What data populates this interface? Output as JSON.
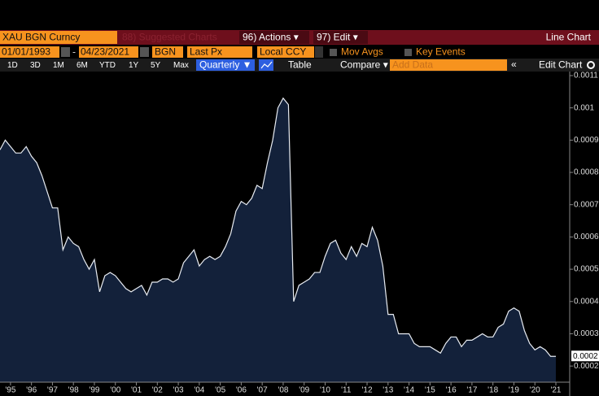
{
  "ui": {
    "security": "XAU BGN Curncy",
    "suggested": "88) Suggested Charts",
    "actions": "96) Actions ▾",
    "edit": "97) Edit ▾",
    "chart_kind": "Line Chart",
    "start_date": "01/01/1993",
    "dash": "-",
    "end_date": "04/23/2021",
    "source": "BGN",
    "field": "Last Px",
    "currency": "Local CCY",
    "mov_avgs": "Mov Avgs",
    "key_events": "Key Events",
    "ranges": [
      "1D",
      "3D",
      "1M",
      "6M",
      "YTD",
      "1Y",
      "5Y",
      "Max"
    ],
    "period": "Quarterly ▼",
    "table": "Table",
    "compare": "Compare ▾",
    "add_data": "Add Data",
    "collapse": "«",
    "edit_chart": "Edit Chart"
  },
  "chart_data": {
    "type": "area",
    "series": [
      {
        "name": "XAU BGN Curncy",
        "color": "#e8ecf2",
        "fill": "#13213a",
        "x": [
          1994.5,
          1994.75,
          1995,
          1995.25,
          1995.5,
          1995.75,
          1996,
          1996.25,
          1996.5,
          1996.75,
          1997,
          1997.25,
          1997.5,
          1997.75,
          1998,
          1998.25,
          1998.5,
          1998.75,
          1999,
          1999.25,
          1999.5,
          1999.75,
          2000,
          2000.25,
          2000.5,
          2000.75,
          2001,
          2001.25,
          2001.5,
          2001.75,
          2002,
          2002.25,
          2002.5,
          2002.75,
          2003,
          2003.25,
          2003.5,
          2003.75,
          2004,
          2004.25,
          2004.5,
          2004.75,
          2005,
          2005.25,
          2005.5,
          2005.75,
          2006,
          2006.25,
          2006.5,
          2006.75,
          2007,
          2007.25,
          2007.5,
          2007.75,
          2008,
          2008.25,
          2008.5,
          2008.75,
          2009,
          2009.25,
          2009.5,
          2009.75,
          2010,
          2010.25,
          2010.5,
          2010.75,
          2011,
          2011.25,
          2011.5,
          2011.75,
          2012,
          2012.25,
          2012.5,
          2012.75,
          2013,
          2013.25,
          2013.5,
          2013.75,
          2014,
          2014.25,
          2014.5,
          2014.75,
          2015,
          2015.25,
          2015.5,
          2015.75,
          2016,
          2016.25,
          2016.5,
          2016.75,
          2017,
          2017.25,
          2017.5,
          2017.75,
          2018,
          2018.25,
          2018.5,
          2018.75,
          2019,
          2019.25,
          2019.5,
          2019.75,
          2020,
          2020.25,
          2020.5,
          2020.75,
          2021
        ],
        "values": [
          0.00087,
          0.0009,
          0.00088,
          0.00086,
          0.00086,
          0.00088,
          0.00085,
          0.00083,
          0.00079,
          0.00074,
          0.00069,
          0.00069,
          0.00056,
          0.0006,
          0.00058,
          0.00057,
          0.00053,
          0.0005,
          0.00053,
          0.00043,
          0.00048,
          0.00049,
          0.00048,
          0.00046,
          0.00044,
          0.00043,
          0.00044,
          0.00045,
          0.00042,
          0.00046,
          0.00046,
          0.00047,
          0.00047,
          0.00046,
          0.00047,
          0.00052,
          0.00054,
          0.00056,
          0.00051,
          0.00053,
          0.00054,
          0.00053,
          0.00054,
          0.00057,
          0.00061,
          0.00068,
          0.00071,
          0.0007,
          0.00072,
          0.00076,
          0.00075,
          0.00083,
          0.0009,
          0.001,
          0.00103,
          0.00101,
          0.0004,
          0.00045,
          0.00046,
          0.00047,
          0.00049,
          0.00049,
          0.00054,
          0.00058,
          0.00059,
          0.00055,
          0.00053,
          0.00057,
          0.00054,
          0.00058,
          0.00057,
          0.00063,
          0.00059,
          0.00051,
          0.00036,
          0.00036,
          0.0003,
          0.0003,
          0.0003,
          0.00027,
          0.00026,
          0.00026,
          0.00026,
          0.00025,
          0.00024,
          0.00027,
          0.00029,
          0.00029,
          0.00026,
          0.00028,
          0.00028,
          0.00029,
          0.0003,
          0.00029,
          0.00029,
          0.00032,
          0.00033,
          0.00037,
          0.00038,
          0.00037,
          0.00031,
          0.00027,
          0.00025,
          0.00026,
          0.00025,
          0.00023,
          0.00023
        ]
      }
    ],
    "last_label": "0.0002",
    "xlim": [
      1994.5,
      2021.66
    ],
    "ylim": [
      0.00015,
      0.0011125
    ],
    "xticks": [
      {
        "value": 1995,
        "label": "'95"
      },
      {
        "value": 1996,
        "label": "'96"
      },
      {
        "value": 1997,
        "label": "'97"
      },
      {
        "value": 1998,
        "label": "'98"
      },
      {
        "value": 1999,
        "label": "'99"
      },
      {
        "value": 2000,
        "label": "'00"
      },
      {
        "value": 2001,
        "label": "'01"
      },
      {
        "value": 2002,
        "label": "'02"
      },
      {
        "value": 2003,
        "label": "'03"
      },
      {
        "value": 2004,
        "label": "'04"
      },
      {
        "value": 2005,
        "label": "'05"
      },
      {
        "value": 2006,
        "label": "'06"
      },
      {
        "value": 2007,
        "label": "'07"
      },
      {
        "value": 2008,
        "label": "'08"
      },
      {
        "value": 2009,
        "label": "'09"
      },
      {
        "value": 2010,
        "label": "'10"
      },
      {
        "value": 2011,
        "label": "'11"
      },
      {
        "value": 2012,
        "label": "'12"
      },
      {
        "value": 2013,
        "label": "'13"
      },
      {
        "value": 2014,
        "label": "'14"
      },
      {
        "value": 2015,
        "label": "'15"
      },
      {
        "value": 2016,
        "label": "'16"
      },
      {
        "value": 2017,
        "label": "'17"
      },
      {
        "value": 2018,
        "label": "'18"
      },
      {
        "value": 2019,
        "label": "'19"
      },
      {
        "value": 2020,
        "label": "'20"
      },
      {
        "value": 2021,
        "label": "'21"
      }
    ],
    "yticks": [
      0.0011,
      0.001,
      0.0009,
      0.0008,
      0.0007,
      0.0006,
      0.0005,
      0.0004,
      0.0003,
      0.0002
    ]
  }
}
